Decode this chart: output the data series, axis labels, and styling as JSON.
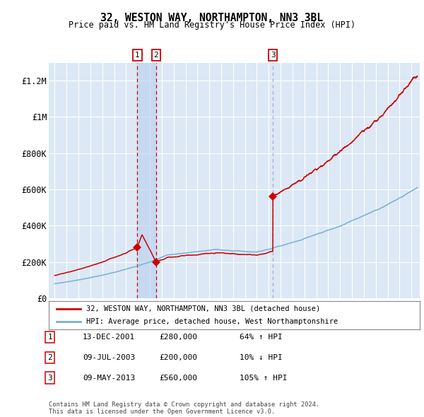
{
  "title": "32, WESTON WAY, NORTHAMPTON, NN3 3BL",
  "subtitle": "Price paid vs. HM Land Registry's House Price Index (HPI)",
  "plot_bg_color": "#dce8f5",
  "grid_color": "#ffffff",
  "hpi_line_color": "#7bafd4",
  "price_line_color": "#cc0000",
  "sale_marker_color": "#cc0000",
  "sales": [
    {
      "label": "1",
      "date_num": 2001.95,
      "price": 280000,
      "date_str": "13-DEC-2001",
      "pct": "64%",
      "dir": "↑"
    },
    {
      "label": "2",
      "date_num": 2003.52,
      "price": 200000,
      "date_str": "09-JUL-2003",
      "pct": "10%",
      "dir": "↓"
    },
    {
      "label": "3",
      "date_num": 2013.35,
      "price": 560000,
      "date_str": "09-MAY-2013",
      "pct": "105%",
      "dir": "↑"
    }
  ],
  "ylim": [
    0,
    1300000
  ],
  "xlim": [
    1994.5,
    2025.7
  ],
  "yticks": [
    0,
    200000,
    400000,
    600000,
    800000,
    1000000,
    1200000
  ],
  "ytick_labels": [
    "£0",
    "£200K",
    "£400K",
    "£600K",
    "£800K",
    "£1M",
    "£1.2M"
  ],
  "legend_line1": "32, WESTON WAY, NORTHAMPTON, NN3 3BL (detached house)",
  "legend_line2": "HPI: Average price, detached house, West Northamptonshire",
  "table_data": [
    [
      "1",
      "13-DEC-2001",
      "£280,000",
      "64% ↑ HPI"
    ],
    [
      "2",
      "09-JUL-2003",
      "£200,000",
      "10% ↓ HPI"
    ],
    [
      "3",
      "09-MAY-2013",
      "£560,000",
      "105% ↑ HPI"
    ]
  ],
  "footnote": "Contains HM Land Registry data © Crown copyright and database right 2024.\nThis data is licensed under the Open Government Licence v3.0."
}
